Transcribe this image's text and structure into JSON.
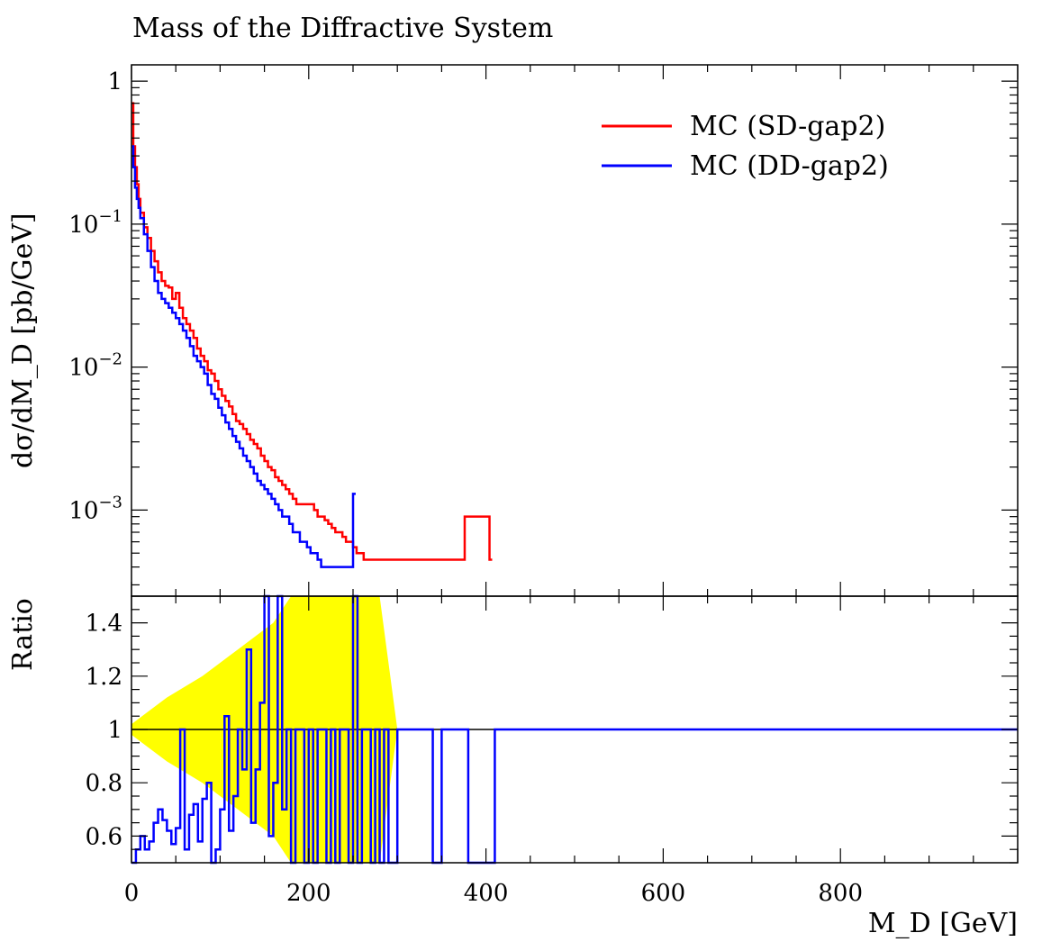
{
  "chart_data": [
    {
      "type": "line",
      "title": "Mass of the Diffractive System",
      "ylabel": "dσ/dM_D [pb/GeV]",
      "xlabel": "M_D [GeV]",
      "xlim": [
        0,
        1000
      ],
      "ylim": [
        0.00025,
        1.3
      ],
      "yscale": "log",
      "x_ticks": [
        "0",
        "200",
        "400",
        "600",
        "800"
      ],
      "y_ticks": [
        "1",
        "10^-1",
        "10^-2",
        "10^-3"
      ],
      "legend_position": "top-right",
      "series": [
        {
          "name": "MC (SD-gap2)",
          "color": "#ff0000",
          "x": [
            0,
            2,
            4,
            6,
            8,
            10,
            14,
            18,
            22,
            26,
            30,
            34,
            38,
            42,
            46,
            50,
            54,
            58,
            62,
            66,
            70,
            74,
            78,
            82,
            86,
            90,
            94,
            98,
            102,
            106,
            110,
            114,
            118,
            122,
            126,
            130,
            134,
            138,
            142,
            146,
            150,
            154,
            158,
            162,
            166,
            170,
            174,
            178,
            182,
            186,
            190,
            194,
            198,
            202,
            206,
            210,
            214,
            218,
            222,
            226,
            230,
            234,
            238,
            242,
            246,
            250,
            254,
            258,
            262,
            266,
            270,
            274,
            278,
            282,
            286,
            290,
            326,
            344,
            352,
            376,
            404
          ],
          "y": [
            0.7,
            0.35,
            0.25,
            0.19,
            0.15,
            0.12,
            0.095,
            0.08,
            0.065,
            0.055,
            0.046,
            0.04,
            0.037,
            0.036,
            0.03,
            0.033,
            0.026,
            0.022,
            0.02,
            0.018,
            0.016,
            0.0135,
            0.012,
            0.011,
            0.0095,
            0.009,
            0.008,
            0.007,
            0.0063,
            0.0058,
            0.0053,
            0.0047,
            0.0042,
            0.004,
            0.0037,
            0.0034,
            0.0031,
            0.0029,
            0.0027,
            0.0024,
            0.0022,
            0.002,
            0.0019,
            0.0017,
            0.0016,
            0.0015,
            0.0014,
            0.0013,
            0.0012,
            0.0011,
            0.0011,
            0.0011,
            0.0011,
            0.0011,
            0.001,
            0.0009,
            0.0009,
            0.00085,
            0.0008,
            0.00075,
            0.0007,
            0.0007,
            0.00065,
            0.0006,
            0.0006,
            0.00055,
            0.0005,
            0.0005,
            0.00045,
            0.00045,
            0.00045,
            0.00045,
            0.00045,
            0.00045,
            0.00045,
            0.00045,
            0.00045,
            0.00045,
            0.00045,
            0.0009,
            0.00045
          ]
        },
        {
          "name": "MC (DD-gap2)",
          "color": "#0000ff",
          "x": [
            0,
            2,
            4,
            6,
            8,
            10,
            14,
            18,
            22,
            26,
            30,
            34,
            38,
            42,
            46,
            50,
            54,
            58,
            62,
            66,
            70,
            74,
            78,
            82,
            86,
            90,
            94,
            98,
            102,
            106,
            110,
            114,
            118,
            122,
            126,
            130,
            134,
            138,
            142,
            146,
            150,
            154,
            158,
            162,
            166,
            170,
            174,
            178,
            182,
            186,
            190,
            194,
            198,
            202,
            206,
            210,
            214,
            218,
            222,
            226,
            230,
            234,
            238,
            242,
            246,
            250
          ],
          "y": [
            0.35,
            0.25,
            0.18,
            0.15,
            0.13,
            0.11,
            0.085,
            0.065,
            0.05,
            0.04,
            0.033,
            0.03,
            0.028,
            0.026,
            0.024,
            0.022,
            0.02,
            0.018,
            0.016,
            0.014,
            0.012,
            0.011,
            0.01,
            0.009,
            0.0075,
            0.0065,
            0.006,
            0.0052,
            0.0046,
            0.0041,
            0.0037,
            0.0033,
            0.003,
            0.0027,
            0.0024,
            0.0022,
            0.002,
            0.0018,
            0.0016,
            0.0015,
            0.0014,
            0.0013,
            0.0012,
            0.0011,
            0.001,
            0.0009,
            0.0009,
            0.0008,
            0.0007,
            0.0007,
            0.0006,
            0.0006,
            0.00055,
            0.0005,
            0.0005,
            0.00045,
            0.0004,
            0.0004,
            0.0004,
            0.0004,
            0.0004,
            0.0004,
            0.0004,
            0.0004,
            0.0004,
            0.0013
          ]
        }
      ]
    },
    {
      "type": "line",
      "ylabel": "Ratio",
      "xlabel": "M_D [GeV]",
      "xlim": [
        0,
        1000
      ],
      "ylim": [
        0.5,
        1.5
      ],
      "y_ticks": [
        "0.6",
        "0.8",
        "1",
        "1.2",
        "1.4"
      ],
      "band_color": "#ffff00",
      "series": [
        {
          "name": "MC (DD-gap2)",
          "color": "#0000ff",
          "x": [
            0,
            5,
            10,
            15,
            20,
            25,
            30,
            35,
            40,
            45,
            50,
            55,
            60,
            65,
            70,
            75,
            80,
            85,
            90,
            95,
            100,
            105,
            110,
            115,
            120,
            125,
            130,
            135,
            140,
            145,
            150,
            155,
            160,
            165,
            170,
            175,
            180,
            185,
            190,
            195,
            200,
            205,
            210,
            215,
            220,
            225,
            230,
            235,
            240,
            245,
            250,
            255,
            260,
            265,
            270,
            275,
            280,
            285,
            290,
            300,
            340,
            350,
            380,
            410,
            1000
          ],
          "y": [
            0.5,
            0.55,
            0.6,
            0.55,
            0.58,
            0.65,
            0.7,
            0.66,
            0.62,
            0.57,
            0.63,
            1.0,
            0.55,
            0.68,
            0.72,
            0.58,
            0.74,
            0.8,
            0.5,
            0.55,
            0.7,
            1.05,
            0.62,
            0.75,
            1.0,
            0.85,
            1.3,
            0.65,
            0.85,
            1.1,
            1.5,
            0.6,
            0.8,
            1.5,
            0.7,
            1.0,
            0.5,
            1.0,
            1.0,
            0.5,
            1.0,
            0.5,
            1.0,
            1.0,
            0.5,
            1.0,
            0.5,
            1.0,
            1.0,
            0.5,
            1.5,
            0.5,
            1.0,
            1.0,
            0.5,
            1.0,
            0.5,
            1.0,
            0.5,
            1.0,
            0.5,
            1.0,
            0.5,
            1.0,
            1.0
          ]
        }
      ],
      "band": {
        "x": [
          0,
          20,
          40,
          60,
          80,
          100,
          120,
          140,
          160,
          180,
          200,
          220,
          240,
          260,
          280,
          300,
          400,
          420,
          1000
        ],
        "lower": [
          0.98,
          0.93,
          0.88,
          0.84,
          0.8,
          0.75,
          0.7,
          0.65,
          0.6,
          0.5,
          0.5,
          0.5,
          0.5,
          0.5,
          0.5,
          1.0,
          1.0,
          1.0,
          1.0
        ],
        "upper": [
          1.02,
          1.07,
          1.12,
          1.16,
          1.2,
          1.25,
          1.3,
          1.35,
          1.4,
          1.5,
          1.5,
          1.5,
          1.5,
          1.5,
          1.5,
          1.0,
          1.0,
          1.0,
          1.0
        ]
      }
    }
  ]
}
